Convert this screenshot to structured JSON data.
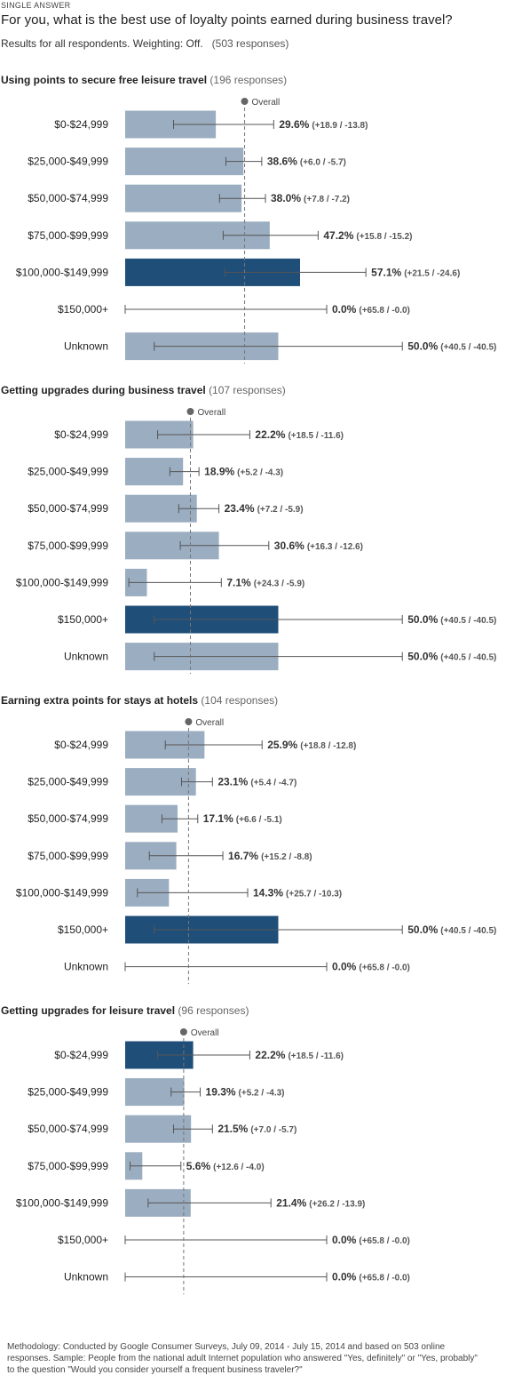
{
  "header": {
    "kicker": "SINGLE ANSWER",
    "question": "For you, what is the best use of loyalty points earned during business travel?",
    "results_note": "Results for all respondents. Weighting: Off.",
    "total_responses": "(503 responses)"
  },
  "overall_label": "Overall",
  "methodology": "Methodology: Conducted by Google Consumer Surveys, July 09, 2014 - July 15, 2014 and based on 503 online responses. Sample: People from the national adult Internet population who answered \"Yes, definitely\" or \"Yes, probably\" to the question \"Would you consider yourself a frequent business traveler?\"",
  "colors": {
    "bar_default": "#9badc0",
    "bar_highlight": "#1f4e79",
    "error_line": "#555555",
    "overall_line": "#777777"
  },
  "chart_data": [
    {
      "type": "bar",
      "orientation": "horizontal",
      "title": "Using points to secure free leisure travel",
      "responses": "(196 responses)",
      "categories": [
        "$0-$24,999",
        "$25,000-$49,999",
        "$50,000-$74,999",
        "$75,000-$99,999",
        "$100,000-$149,999",
        "$150,000+",
        "Unknown"
      ],
      "values": [
        29.6,
        38.6,
        38.0,
        47.2,
        57.1,
        0.0,
        50.0
      ],
      "labels": [
        "29.6%",
        "38.6%",
        "38.0%",
        "47.2%",
        "57.1%",
        "0.0%",
        "50.0%"
      ],
      "ci_text": [
        "(+18.9 / -13.8)",
        "(+6.0 / -5.7)",
        "(+7.8 / -7.2)",
        "(+15.8 / -15.2)",
        "(+21.5 / -24.6)",
        "(+65.8 / -0.0)",
        "(+40.5 / -40.5)"
      ],
      "err_plus": [
        18.9,
        6.0,
        7.8,
        15.8,
        21.5,
        65.8,
        40.5
      ],
      "err_minus": [
        13.8,
        5.7,
        7.2,
        15.2,
        24.6,
        0.0,
        40.5
      ],
      "highlight_index": 4,
      "overall": 39.0
    },
    {
      "type": "bar",
      "orientation": "horizontal",
      "title": "Getting upgrades during business travel",
      "responses": "(107 responses)",
      "categories": [
        "$0-$24,999",
        "$25,000-$49,999",
        "$50,000-$74,999",
        "$75,000-$99,999",
        "$100,000-$149,999",
        "$150,000+",
        "Unknown"
      ],
      "values": [
        22.2,
        18.9,
        23.4,
        30.6,
        7.1,
        50.0,
        50.0
      ],
      "labels": [
        "22.2%",
        "18.9%",
        "23.4%",
        "30.6%",
        "7.1%",
        "50.0%",
        "50.0%"
      ],
      "ci_text": [
        "(+18.5 / -11.6)",
        "(+5.2 / -4.3)",
        "(+7.2 / -5.9)",
        "(+16.3 / -12.6)",
        "(+24.3 / -5.9)",
        "(+40.5 / -40.5)",
        "(+40.5 / -40.5)"
      ],
      "err_plus": [
        18.5,
        5.2,
        7.2,
        16.3,
        24.3,
        40.5,
        40.5
      ],
      "err_minus": [
        11.6,
        4.3,
        5.9,
        12.6,
        5.9,
        40.5,
        40.5
      ],
      "highlight_index": 5,
      "overall": 21.3
    },
    {
      "type": "bar",
      "orientation": "horizontal",
      "title": "Earning extra points for stays at hotels",
      "responses": "(104 responses)",
      "categories": [
        "$0-$24,999",
        "$25,000-$49,999",
        "$50,000-$74,999",
        "$75,000-$99,999",
        "$100,000-$149,999",
        "$150,000+",
        "Unknown"
      ],
      "values": [
        25.9,
        23.1,
        17.1,
        16.7,
        14.3,
        50.0,
        0.0
      ],
      "labels": [
        "25.9%",
        "23.1%",
        "17.1%",
        "16.7%",
        "14.3%",
        "50.0%",
        "0.0%"
      ],
      "ci_text": [
        "(+18.8 / -12.8)",
        "(+5.4 / -4.7)",
        "(+6.6 / -5.1)",
        "(+15.2 / -8.8)",
        "(+25.7 / -10.3)",
        "(+40.5 / -40.5)",
        "(+65.8 / -0.0)"
      ],
      "err_plus": [
        18.8,
        5.4,
        6.6,
        15.2,
        25.7,
        40.5,
        65.8
      ],
      "err_minus": [
        12.8,
        4.7,
        5.1,
        8.8,
        10.3,
        40.5,
        0.0
      ],
      "highlight_index": 5,
      "overall": 20.7
    },
    {
      "type": "bar",
      "orientation": "horizontal",
      "title": "Getting upgrades for leisure travel",
      "responses": "(96 responses)",
      "categories": [
        "$0-$24,999",
        "$25,000-$49,999",
        "$50,000-$74,999",
        "$75,000-$99,999",
        "$100,000-$149,999",
        "$150,000+",
        "Unknown"
      ],
      "values": [
        22.2,
        19.3,
        21.5,
        5.6,
        21.4,
        0.0,
        0.0
      ],
      "labels": [
        "22.2%",
        "19.3%",
        "21.5%",
        "5.6%",
        "21.4%",
        "0.0%",
        "0.0%"
      ],
      "ci_text": [
        "(+18.5 / -11.6)",
        "(+5.2 / -4.3)",
        "(+7.0 / -5.7)",
        "(+12.6 / -4.0)",
        "(+26.2 / -13.9)",
        "(+65.8 / -0.0)",
        "(+65.8 / -0.0)"
      ],
      "err_plus": [
        18.5,
        5.2,
        7.0,
        12.6,
        26.2,
        65.8,
        65.8
      ],
      "err_minus": [
        11.6,
        4.3,
        5.7,
        4.0,
        13.9,
        0.0,
        0.0
      ],
      "highlight_index": 0,
      "overall": 19.1
    }
  ]
}
